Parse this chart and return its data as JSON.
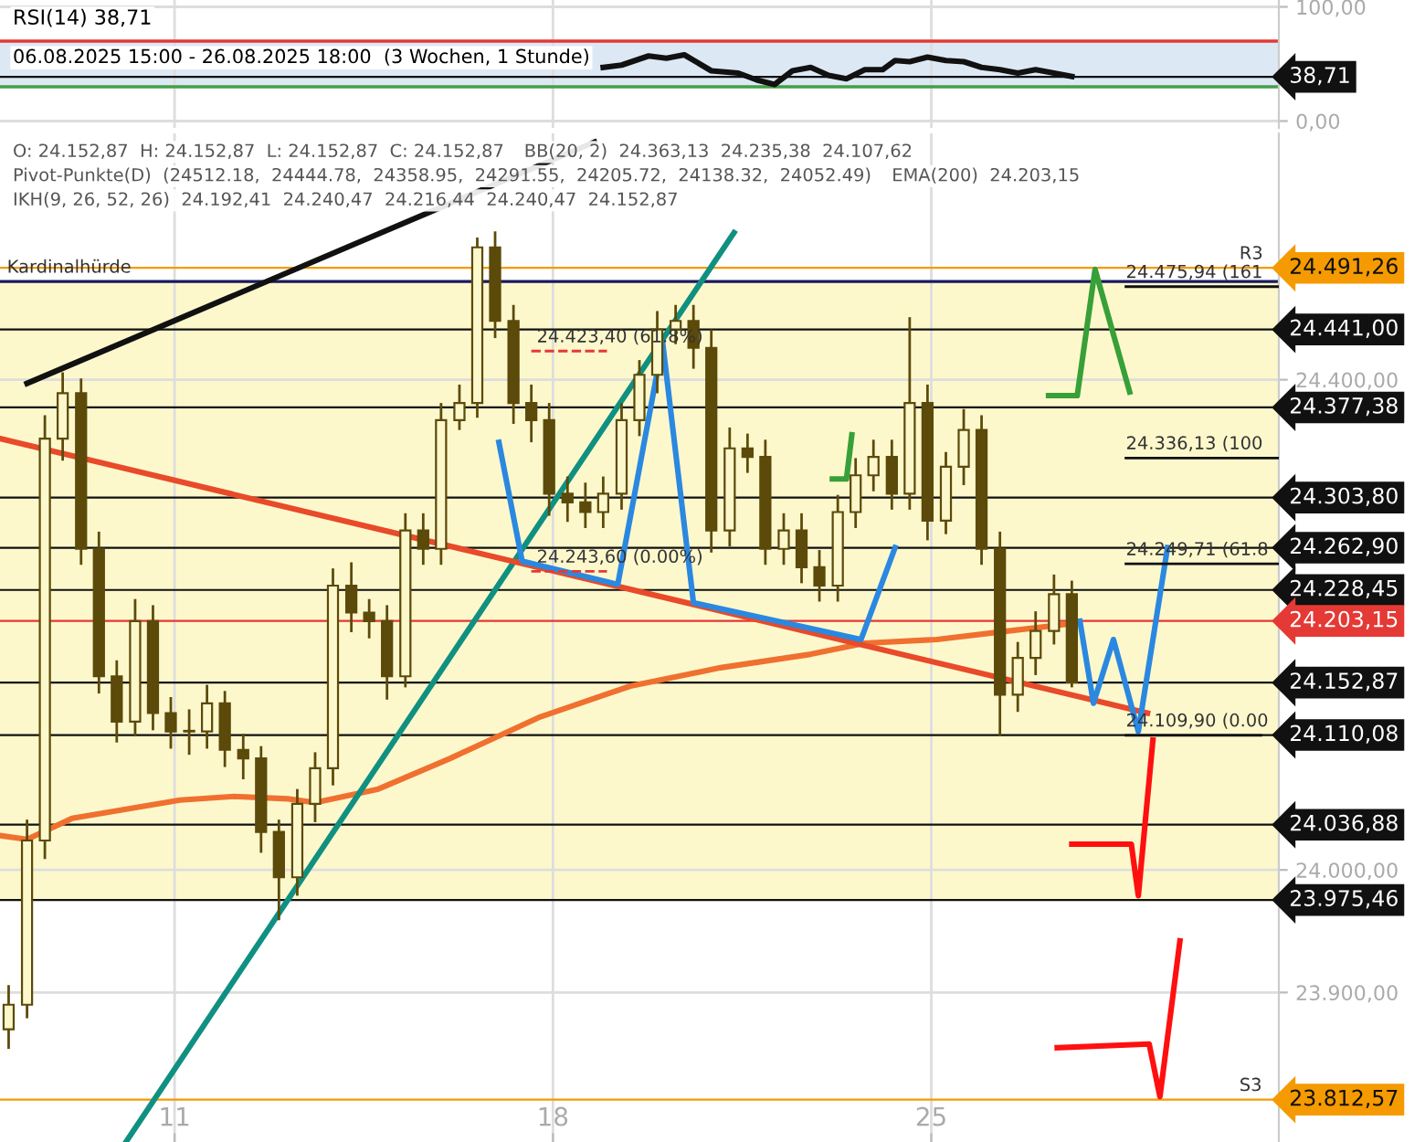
{
  "chart_data": [
    {
      "type": "line",
      "title": "RSI(14) 38,71",
      "subtitle": "06.08.2025 15:00 - 26.08.2025 18:00  (3 Wochen, 1 Stunde)",
      "xlim": [
        7.77,
        31.43
      ],
      "xticks": [
        11,
        18,
        25
      ],
      "ylim": [
        -6,
        106
      ],
      "yticks": [
        {
          "value": 0,
          "label": "0,00"
        },
        {
          "value": 100,
          "label": "100,00"
        }
      ],
      "tick_labels": "y",
      "grid": true,
      "bands": [
        {
          "axis": "y",
          "from": 30,
          "to": 70,
          "color": "#dde8f5"
        }
      ],
      "ref_lines": [
        {
          "axis": "y",
          "value": 70,
          "color": "#e53935"
        },
        {
          "axis": "y",
          "value": 30,
          "color": "#43a047"
        },
        {
          "axis": "y",
          "value": 38.71,
          "label": "38,71",
          "color": "#111111"
        }
      ],
      "series": [
        {
          "color": "#111111",
          "x": [
            18.93,
            19.27,
            19.77,
            20.1,
            20.43,
            20.93,
            21.43,
            21.77,
            22.1,
            22.43,
            22.77,
            23.1,
            23.43,
            23.77,
            24.1,
            24.33,
            24.6,
            24.93,
            25.27,
            25.6,
            25.93,
            26.27,
            26.6,
            26.93,
            27.27,
            27.6
          ],
          "values": [
            47,
            49,
            57,
            55,
            58,
            44,
            42,
            36,
            32,
            44,
            47,
            40,
            37,
            45,
            45,
            53,
            52,
            56,
            53,
            52,
            47,
            45,
            42,
            45,
            42,
            39
          ]
        }
      ]
    },
    {
      "type": "candlestick",
      "xlim": [
        7.77,
        31.43
      ],
      "xticks": [
        11,
        18,
        25
      ],
      "ylim": [
        23778,
        24601
      ],
      "yticks": [
        {
          "value": 23900,
          "label": "23.900,00"
        },
        {
          "value": 24000,
          "label": "24.000,00"
        },
        {
          "value": 24400,
          "label": "24.400,00"
        }
      ],
      "grid": true,
      "annotations": [
        "O: 24.152,87  H: 24.152,87  L: 24.152,87  C: 24.152,87",
        "BB(20, 2)  24.363,13  24.235,38  24.107,62",
        "Pivot-Punkte(D)  (24512.18,  24444.78,  24358.95,  24291.55,  24205.72,  24138.32,  24052.49)",
        "EMA(200)  24.203,15",
        "IKH(9, 26, 52, 26)  24.192,41  24.240,47  24.216,44  24.240,47  24.152,87",
        {
          "text": "Kardinalhürde",
          "x": 7.9,
          "y": 24480.12
        },
        {
          "text": "R3",
          "x": 30.7,
          "y": 24491.26
        },
        {
          "text": "S3",
          "x": 30.7,
          "y": 23812.57
        },
        {
          "text": "24.423,40 (61.8%)",
          "x": 17.7,
          "y": 24423.4
        },
        {
          "text": "24.243,60 (0.00%)",
          "x": 17.7,
          "y": 24243.6
        },
        {
          "text": "24.475,94 (161",
          "x": 28.6,
          "y": 24475.94
        },
        {
          "text": "24.336,13 (100",
          "x": 28.6,
          "y": 24336.13
        },
        {
          "text": "24.249,71 (61.8",
          "x": 28.6,
          "y": 24249.71
        },
        {
          "text": "24.109,90 (0.00",
          "x": 28.6,
          "y": 24109.9
        }
      ],
      "bands": [
        {
          "axis": "y",
          "from": 23975.46,
          "to": 24480.12,
          "color": "#fdf8cc"
        }
      ],
      "ref_lines": [
        {
          "axis": "y",
          "value": 24491.26,
          "label": "24.491,26",
          "color": "#f59a00"
        },
        {
          "axis": "y",
          "value": 24480.12,
          "color": "#1a1a60"
        },
        {
          "axis": "y",
          "value": 24441.0,
          "label": "24.441,00",
          "color": "#111111"
        },
        {
          "axis": "y",
          "value": 24377.38,
          "label": "24.377,38",
          "color": "#111111"
        },
        {
          "axis": "y",
          "value": 24303.8,
          "label": "24.303,80",
          "color": "#111111"
        },
        {
          "axis": "y",
          "value": 24262.9,
          "label": "24.262,90",
          "color": "#111111"
        },
        {
          "axis": "y",
          "value": 24228.45,
          "label": "24.228,45",
          "color": "#111111"
        },
        {
          "axis": "y",
          "value": 24203.15,
          "label": "24.203,15",
          "color": "#e53935"
        },
        {
          "axis": "y",
          "value": 24152.87,
          "label": "24.152,87",
          "color": "#111111"
        },
        {
          "axis": "y",
          "value": 24110.08,
          "label": "24.110,08",
          "color": "#111111"
        },
        {
          "axis": "y",
          "value": 24036.88,
          "label": "24.036,88",
          "color": "#111111"
        },
        {
          "axis": "y",
          "value": 23975.46,
          "label": "23.975,46",
          "color": "#111111"
        },
        {
          "axis": "y",
          "value": 23812.57,
          "label": "23.812,57",
          "color": "#f59a00"
        }
      ],
      "series": [
        {
          "color": "#5c4a0a",
          "x": [
            7.93,
            8.27,
            8.6,
            8.93,
            9.27,
            9.6,
            9.93,
            10.27,
            10.6,
            10.93,
            11.27,
            11.6,
            11.93,
            12.27,
            12.6,
            12.93,
            13.27,
            13.6,
            13.93,
            14.27,
            14.6,
            14.93,
            15.27,
            15.6,
            15.93,
            16.27,
            16.6,
            16.93,
            17.27,
            17.6,
            17.93,
            18.27,
            18.6,
            18.93,
            19.27,
            19.6,
            19.93,
            20.27,
            20.6,
            20.93,
            21.27,
            21.6,
            21.93,
            22.27,
            22.6,
            22.93,
            23.27,
            23.6,
            23.93,
            24.27,
            24.6,
            24.93,
            25.27,
            25.6,
            25.93,
            26.27,
            26.6,
            26.93,
            27.27,
            27.6
          ],
          "ohlc": [
            [
              23870,
              23905,
              23855,
              23890
            ],
            [
              23890,
              24040,
              23880,
              24024
            ],
            [
              24024,
              24370,
              24010,
              24352
            ],
            [
              24352,
              24405,
              24335,
              24389
            ],
            [
              24389,
              24400,
              24250,
              24262
            ],
            [
              24262,
              24275,
              24145,
              24158
            ],
            [
              24158,
              24170,
              24105,
              24121
            ],
            [
              24121,
              24220,
              24110,
              24203
            ],
            [
              24203,
              24215,
              24115,
              24128
            ],
            [
              24128,
              24140,
              24100,
              24113
            ],
            [
              24113,
              24130,
              24095,
              24113
            ],
            [
              24113,
              24150,
              24100,
              24136
            ],
            [
              24136,
              24145,
              24085,
              24098
            ],
            [
              24098,
              24110,
              24075,
              24091
            ],
            [
              24091,
              24100,
              24015,
              24031
            ],
            [
              24031,
              24040,
              23960,
              23994
            ],
            [
              23994,
              24065,
              23980,
              24054
            ],
            [
              24054,
              24095,
              24040,
              24083
            ],
            [
              24083,
              24245,
              24070,
              24232
            ],
            [
              24232,
              24250,
              24195,
              24210
            ],
            [
              24210,
              24220,
              24190,
              24203
            ],
            [
              24203,
              24215,
              24140,
              24158
            ],
            [
              24158,
              24290,
              24150,
              24277
            ],
            [
              24277,
              24290,
              24250,
              24262
            ],
            [
              24262,
              24380,
              24250,
              24367
            ],
            [
              24367,
              24395,
              24360,
              24381
            ],
            [
              24381,
              24515,
              24370,
              24508
            ],
            [
              24508,
              24520,
              24435,
              24448
            ],
            [
              24448,
              24460,
              24365,
              24381
            ],
            [
              24381,
              24395,
              24350,
              24367
            ],
            [
              24367,
              24380,
              24290,
              24307
            ],
            [
              24307,
              24320,
              24285,
              24300
            ],
            [
              24300,
              24315,
              24280,
              24292
            ],
            [
              24292,
              24320,
              24280,
              24307
            ],
            [
              24307,
              24380,
              24295,
              24367
            ],
            [
              24367,
              24415,
              24355,
              24404
            ],
            [
              24404,
              24455,
              24390,
              24441
            ],
            [
              24441,
              24460,
              24430,
              24448
            ],
            [
              24448,
              24460,
              24410,
              24426
            ],
            [
              24426,
              24440,
              24260,
              24277
            ],
            [
              24277,
              24360,
              24265,
              24344
            ],
            [
              24344,
              24355,
              24325,
              24337
            ],
            [
              24337,
              24350,
              24250,
              24262
            ],
            [
              24262,
              24290,
              24250,
              24277
            ],
            [
              24277,
              24290,
              24235,
              24247
            ],
            [
              24247,
              24260,
              24220,
              24232
            ],
            [
              24232,
              24305,
              24220,
              24292
            ],
            [
              24292,
              24335,
              24280,
              24322
            ],
            [
              24322,
              24350,
              24310,
              24337
            ],
            [
              24337,
              24350,
              24295,
              24307
            ],
            [
              24307,
              24450,
              24295,
              24381
            ],
            [
              24381,
              24395,
              24270,
              24285
            ],
            [
              24285,
              24340,
              24275,
              24329
            ],
            [
              24329,
              24375,
              24315,
              24359
            ],
            [
              24359,
              24370,
              24250,
              24262
            ],
            [
              24262,
              24275,
              24110,
              24143
            ],
            [
              24143,
              24185,
              24130,
              24173
            ],
            [
              24173,
              24210,
              24160,
              24195
            ],
            [
              24195,
              24240,
              24185,
              24225
            ],
            [
              24225,
              24235,
              24150,
              24153
            ]
          ]
        },
        {
          "type": "line",
          "color": "#f07030",
          "x": [
            7.77,
            8.27,
            9.1,
            11.1,
            12.1,
            13.1,
            13.6,
            14.77,
            16.1,
            17.77,
            19.43,
            21.1,
            22.77,
            23.77,
            25.1,
            26.43,
            27.6
          ],
          "values": [
            24028,
            24025,
            24042,
            24057,
            24060,
            24058,
            24055,
            24066,
            24091,
            24125,
            24150,
            24165,
            24176,
            24185,
            24188,
            24195,
            24201
          ]
        },
        {
          "type": "line",
          "color": "#111111",
          "x": [
            8.27,
            18.77
          ],
          "values": [
            24397,
            24594
          ]
        },
        {
          "type": "line",
          "color": "#109080",
          "x": [
            10.1,
            21.35
          ],
          "values": [
            23778,
            24520
          ]
        },
        {
          "type": "line",
          "color": "#e84a2a",
          "x": [
            7.77,
            29.0
          ],
          "values": [
            24352,
            24128
          ]
        },
        {
          "type": "line",
          "color": "#2b88e0",
          "x": [
            17.0,
            17.43,
            19.2,
            20.03,
            20.6,
            23.7,
            24.33
          ],
          "values": [
            24349,
            24252,
            24233,
            24430,
            24218,
            24188,
            24263
          ]
        },
        {
          "type": "line",
          "color": "#2b88e0",
          "x": [
            27.75,
            28.0,
            28.37,
            28.83,
            29.37
          ],
          "values": [
            24203,
            24136,
            24188,
            24113,
            24263
          ]
        },
        {
          "type": "line",
          "color": "#38a038",
          "x": [
            23.17,
            23.43,
            23.53
          ],
          "values": [
            24319,
            24319,
            24355
          ]
        },
        {
          "type": "line",
          "color": "#38a038",
          "x": [
            27.17,
            27.7,
            28.03,
            28.67
          ],
          "values": [
            24387,
            24387,
            24490,
            24390
          ]
        },
        {
          "type": "line",
          "color": "#ff1010",
          "x": [
            27.6,
            28.7,
            28.83,
            29.1
          ],
          "values": [
            24021,
            24021,
            23979,
            24106
          ]
        },
        {
          "type": "line",
          "color": "#ff1010",
          "x": [
            27.33,
            29.03,
            29.23,
            29.6
          ],
          "values": [
            23855,
            23858,
            23815,
            23942
          ]
        },
        {
          "type": "line",
          "color": "#e53935",
          "line_style": "dashed",
          "x": [
            17.6,
            19.0
          ],
          "values": [
            24423.4,
            24423.4
          ]
        },
        {
          "type": "line",
          "color": "#e53935",
          "line_style": "dashed",
          "x": [
            17.6,
            19.0
          ],
          "values": [
            24243.6,
            24243.6
          ]
        },
        {
          "type": "line",
          "color": "#111111",
          "line_style": "solid",
          "x": [
            28.6,
            31.43
          ],
          "values": [
            24475.94,
            24475.94
          ]
        },
        {
          "type": "line",
          "color": "#111111",
          "line_style": "solid",
          "x": [
            28.6,
            31.43
          ],
          "values": [
            24336.13,
            24336.13
          ]
        },
        {
          "type": "line",
          "color": "#111111",
          "line_style": "solid",
          "x": [
            28.6,
            31.43
          ],
          "values": [
            24249.71,
            24249.71
          ]
        },
        {
          "type": "line",
          "color": "#111111",
          "line_style": "solid",
          "x": [
            28.6,
            31.1
          ],
          "values": [
            24109.9,
            24109.9
          ]
        }
      ]
    }
  ]
}
